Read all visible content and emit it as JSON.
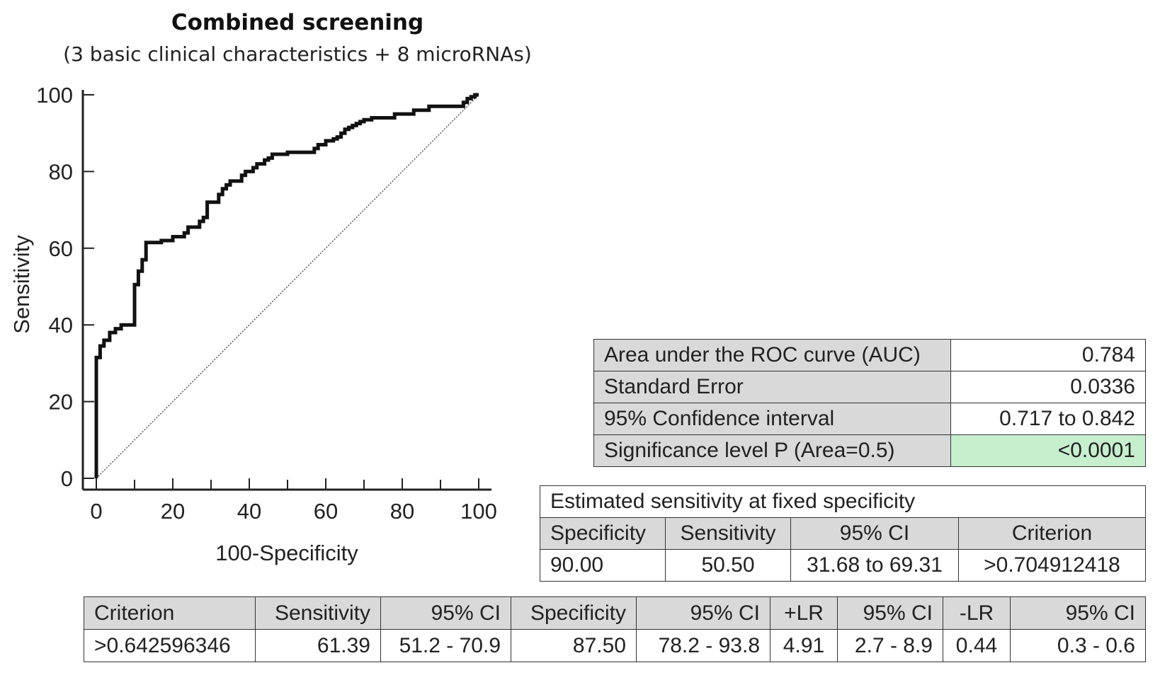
{
  "title": "Combined screening",
  "subtitle": "(3 basic clinical characteristics + 8 microRNAs)",
  "chart_data": {
    "type": "line",
    "xlabel": "100-Specificity",
    "ylabel": "Sensitivity",
    "xlim": [
      0,
      100
    ],
    "ylim": [
      0,
      100
    ],
    "x_ticks": [
      "0",
      "20",
      "40",
      "60",
      "80",
      "100"
    ],
    "y_ticks": [
      "0",
      "20",
      "40",
      "60",
      "80",
      "100"
    ],
    "series": [
      {
        "name": "ROC curve",
        "style": "step",
        "x": [
          0,
          0,
          1,
          1,
          2,
          2,
          3.5,
          3.5,
          5,
          5,
          6.5,
          6.5,
          10,
          10,
          11,
          11,
          12,
          12,
          13,
          13,
          17,
          17,
          20,
          20,
          23,
          23,
          24,
          24,
          27,
          27,
          28,
          28,
          29,
          29,
          32,
          32,
          33,
          33,
          34,
          34,
          35,
          35,
          38,
          38,
          39,
          39,
          41,
          41,
          42,
          42,
          44,
          44,
          45,
          45,
          46,
          46,
          50,
          50,
          57,
          57,
          58,
          58,
          60,
          60,
          62,
          62,
          63,
          63,
          64,
          64,
          65,
          65,
          66,
          66,
          67,
          67,
          68,
          68,
          69,
          69,
          70,
          70,
          72,
          72,
          78,
          78,
          83,
          83,
          87,
          87,
          96,
          96,
          97,
          97,
          98,
          98,
          99,
          99,
          100
        ],
        "y": [
          0,
          31.5,
          31.5,
          34.5,
          34.5,
          36,
          36,
          38,
          38,
          39,
          39,
          40,
          40,
          50.5,
          50.5,
          54,
          54,
          57,
          57,
          61.5,
          61.5,
          62,
          62,
          63,
          63,
          64,
          64,
          65.5,
          65.5,
          67,
          67,
          68,
          68,
          72,
          72,
          74,
          74,
          75.5,
          75.5,
          76.5,
          76.5,
          77.5,
          77.5,
          79,
          79,
          80,
          80,
          81,
          81,
          82,
          82,
          83,
          83,
          83.5,
          83.5,
          84.5,
          84.5,
          85,
          85,
          86,
          86,
          87,
          87,
          88,
          88,
          88.5,
          88.5,
          89,
          89,
          90,
          90,
          91,
          91,
          91.5,
          91.5,
          92,
          92,
          92.5,
          92.5,
          93,
          93,
          93.5,
          93.5,
          94,
          94,
          95,
          95,
          96,
          96,
          97,
          97,
          98,
          98,
          99,
          99,
          99.5,
          99.5,
          100,
          100
        ]
      },
      {
        "name": "Reference line",
        "style": "dotted",
        "x": [
          0,
          100
        ],
        "y": [
          0,
          100
        ]
      }
    ]
  },
  "auc_table": {
    "rows": [
      {
        "label": "Area under the ROC curve (AUC)",
        "value": "0.784"
      },
      {
        "label": "Standard Error",
        "value": "0.0336"
      },
      {
        "label": "95% Confidence interval",
        "value": "0.717 to 0.842"
      },
      {
        "label": "Significance level P (Area=0.5)",
        "value": "<0.0001"
      }
    ],
    "highlight_color": "#c6efce"
  },
  "est_table": {
    "title": "Estimated sensitivity at fixed specificity",
    "headers": [
      "Specificity",
      "Sensitivity",
      "95% CI",
      "Criterion"
    ],
    "row": [
      "90.00",
      "50.50",
      "31.68 to 69.31",
      ">0.704912418"
    ]
  },
  "criterion_table": {
    "headers": [
      "Criterion",
      "Sensitivity",
      "95% CI",
      "Specificity",
      "95% CI",
      "+LR",
      "95% CI",
      "-LR",
      "95% CI"
    ],
    "row": [
      ">0.642596346",
      "61.39",
      "51.2 - 70.9",
      "87.50",
      "78.2 - 93.8",
      "4.91",
      "2.7 - 8.9",
      "0.44",
      "0.3 - 0.6"
    ]
  }
}
